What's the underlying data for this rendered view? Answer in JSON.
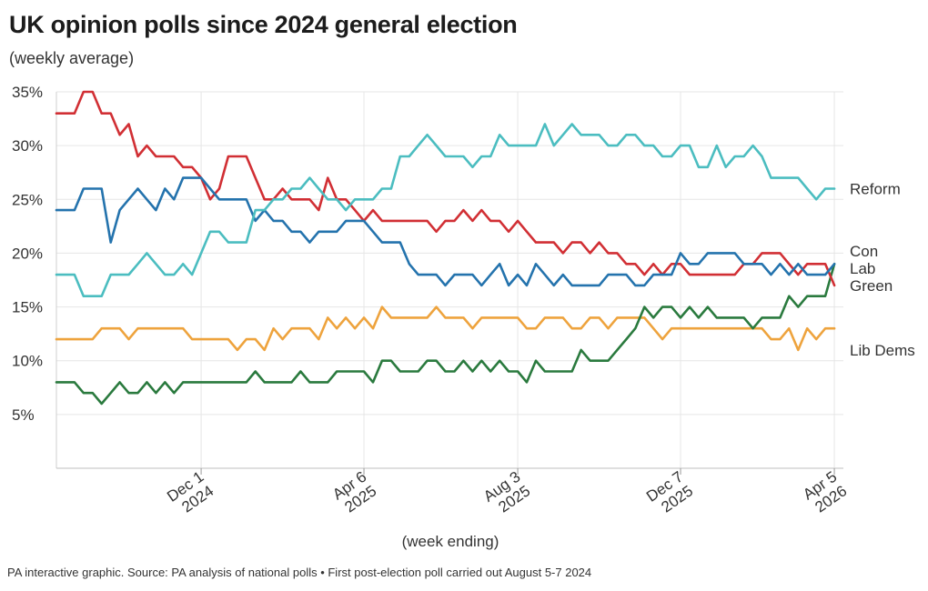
{
  "title": "UK opinion polls since 2024 general election",
  "subtitle": "(weekly average)",
  "footer": "PA interactive graphic. Source: PA analysis of national polls • First post-election poll carried out August 5-7 2024",
  "chart_data": {
    "type": "line",
    "title": "UK opinion polls since 2024 general election",
    "subtitle": "(weekly average)",
    "xlabel": "(week ending)",
    "ylabel": "",
    "ylim": [
      0,
      35
    ],
    "yticks": [
      "5%",
      "10%",
      "15%",
      "20%",
      "25%",
      "30%",
      "35%"
    ],
    "xlim": [
      1,
      88
    ],
    "xticks": [
      {
        "week": 17,
        "line1": "Dec 1",
        "line2": "2024"
      },
      {
        "week": 35,
        "line1": "Apr 6",
        "line2": "2025"
      },
      {
        "week": 52,
        "line1": "Aug 3",
        "line2": "2025"
      },
      {
        "week": 70,
        "line1": "Dec 7",
        "line2": "2025"
      },
      {
        "week": 87,
        "line1": "Apr 5",
        "line2": "2026"
      }
    ],
    "grid": true,
    "x": [
      1,
      2,
      3,
      4,
      5,
      6,
      7,
      8,
      9,
      10,
      11,
      12,
      13,
      14,
      15,
      16,
      17,
      18,
      19,
      20,
      21,
      22,
      23,
      24,
      25,
      26,
      27,
      28,
      29,
      30,
      31,
      32,
      33,
      34,
      35,
      36,
      37,
      38,
      39,
      40,
      41,
      42,
      43,
      44,
      45,
      46,
      47,
      48,
      49,
      50,
      51,
      52,
      53,
      54,
      55,
      56,
      57,
      58,
      59,
      60,
      61,
      62,
      63,
      64,
      65,
      66,
      67,
      68,
      69,
      70,
      71,
      72,
      73,
      74,
      75,
      76,
      77,
      78,
      79,
      80,
      81,
      82,
      83,
      84,
      85,
      86,
      87
    ],
    "series": [
      {
        "name": "Reform",
        "color": "#4bbdc0",
        "label_y": 26,
        "values": [
          18,
          18,
          18,
          16,
          16,
          16,
          18,
          18,
          18,
          19,
          20,
          19,
          18,
          18,
          19,
          18,
          20,
          22,
          22,
          21,
          21,
          21,
          24,
          24,
          25,
          25,
          26,
          26,
          27,
          26,
          25,
          25,
          24,
          25,
          25,
          25,
          26,
          26,
          29,
          29,
          30,
          31,
          30,
          29,
          29,
          29,
          28,
          29,
          29,
          31,
          30,
          30,
          30,
          30,
          32,
          30,
          31,
          32,
          31,
          31,
          31,
          30,
          30,
          31,
          31,
          30,
          30,
          29,
          29,
          30,
          30,
          28,
          28,
          30,
          28,
          29,
          29,
          30,
          29,
          27,
          27,
          27,
          27,
          26,
          25,
          26,
          26
        ]
      },
      {
        "name": "Con",
        "color": "#2473ad",
        "label_y": 20.2,
        "values": [
          24,
          24,
          24,
          26,
          26,
          26,
          21,
          24,
          25,
          26,
          25,
          24,
          26,
          25,
          27,
          27,
          27,
          26,
          25,
          25,
          25,
          25,
          23,
          24,
          23,
          23,
          22,
          22,
          21,
          22,
          22,
          22,
          23,
          23,
          23,
          22,
          21,
          21,
          21,
          19,
          18,
          18,
          18,
          17,
          18,
          18,
          18,
          17,
          18,
          19,
          17,
          18,
          17,
          19,
          18,
          17,
          18,
          17,
          17,
          17,
          17,
          18,
          18,
          18,
          17,
          17,
          18,
          18,
          18,
          20,
          19,
          19,
          20,
          20,
          20,
          20,
          19,
          19,
          19,
          18,
          19,
          18,
          19,
          18,
          18,
          18,
          19
        ]
      },
      {
        "name": "Lab",
        "color": "#d12f34",
        "label_y": 18.6,
        "values": [
          33,
          33,
          33,
          35,
          35,
          33,
          33,
          31,
          32,
          29,
          30,
          29,
          29,
          29,
          28,
          28,
          27,
          25,
          26,
          29,
          29,
          29,
          27,
          25,
          25,
          26,
          25,
          25,
          25,
          24,
          27,
          25,
          25,
          24,
          23,
          24,
          23,
          23,
          23,
          23,
          23,
          23,
          22,
          23,
          23,
          24,
          23,
          24,
          23,
          23,
          22,
          23,
          22,
          21,
          21,
          21,
          20,
          21,
          21,
          20,
          21,
          20,
          20,
          19,
          19,
          18,
          19,
          18,
          19,
          19,
          18,
          18,
          18,
          18,
          18,
          18,
          19,
          19,
          20,
          20,
          20,
          19,
          18,
          19,
          19,
          19,
          17
        ]
      },
      {
        "name": "Green",
        "color": "#2a7a3e",
        "label_y": 17,
        "values": [
          8,
          8,
          8,
          7,
          7,
          6,
          7,
          8,
          7,
          7,
          8,
          7,
          8,
          7,
          8,
          8,
          8,
          8,
          8,
          8,
          8,
          8,
          9,
          8,
          8,
          8,
          8,
          9,
          8,
          8,
          8,
          9,
          9,
          9,
          9,
          8,
          10,
          10,
          9,
          9,
          9,
          10,
          10,
          9,
          9,
          10,
          9,
          10,
          9,
          10,
          9,
          9,
          8,
          10,
          9,
          9,
          9,
          9,
          11,
          10,
          10,
          10,
          11,
          12,
          13,
          15,
          14,
          15,
          15,
          14,
          15,
          14,
          15,
          14,
          14,
          14,
          14,
          13,
          14,
          14,
          14,
          16,
          15,
          16,
          16,
          16,
          19
        ]
      },
      {
        "name": "Lib Dems",
        "color": "#eea33d",
        "label_y": 11,
        "values": [
          12,
          12,
          12,
          12,
          12,
          13,
          13,
          13,
          12,
          13,
          13,
          13,
          13,
          13,
          13,
          12,
          12,
          12,
          12,
          12,
          11,
          12,
          12,
          11,
          13,
          12,
          13,
          13,
          13,
          12,
          14,
          13,
          14,
          13,
          14,
          13,
          15,
          14,
          14,
          14,
          14,
          14,
          15,
          14,
          14,
          14,
          13,
          14,
          14,
          14,
          14,
          14,
          13,
          13,
          14,
          14,
          14,
          13,
          13,
          14,
          14,
          13,
          14,
          14,
          14,
          14,
          13,
          12,
          13,
          13,
          13,
          13,
          13,
          13,
          13,
          13,
          13,
          13,
          13,
          12,
          12,
          13,
          11,
          13,
          12,
          13,
          13
        ]
      }
    ]
  }
}
